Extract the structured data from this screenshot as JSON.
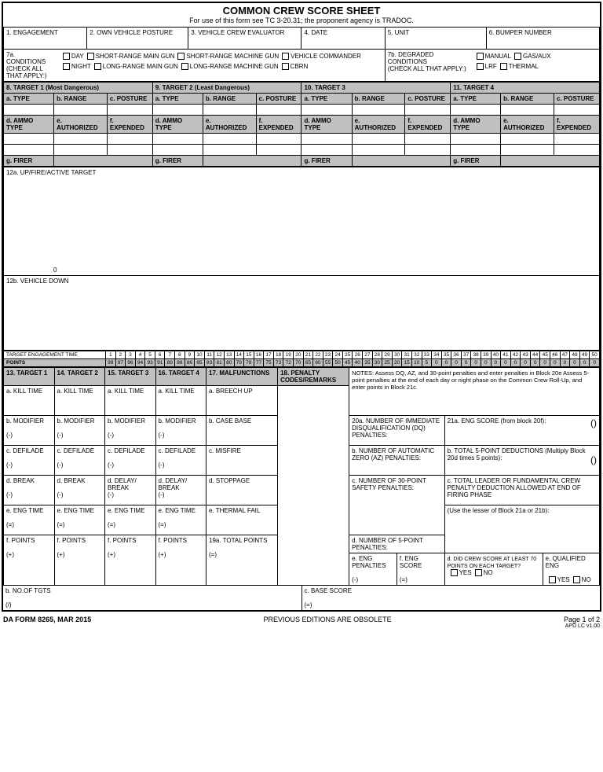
{
  "title": "COMMON CREW SCORE SHEET",
  "subtitle": "For use of this form see TC 3-20.31; the proponent agency is TRADOC.",
  "h1": "1. ENGAGEMENT",
  "h2": "2. OWN VEHICLE POSTURE",
  "h3": "3. VEHICLE CREW EVALUATOR",
  "h4": "4. DATE",
  "h5": "5. UNIT",
  "h6": "6. BUMPER NUMBER",
  "h7a": "7a. CONDITIONS",
  "h7a2": "(CHECK ALL THAT APPLY:)",
  "c_day": "DAY",
  "c_night": "NIGHT",
  "c_srmg": "SHORT-RANGE MAIN GUN",
  "c_lrmg": "LONG-RANGE MAIN GUN",
  "c_srm": "SHORT-RANGE MACHINE GUN",
  "c_lrm": "LONG-RANGE MACHINE GUN",
  "c_vc": "VEHICLE COMMANDER",
  "c_cbrn": "CBRN",
  "h7b": "7b. DEGRADED CONDITIONS",
  "h7b2": "(CHECK ALL THAT APPLY:)",
  "c_man": "MANUAL",
  "c_gas": "GAS/AUX",
  "c_lrf": "LRF",
  "c_thm": "THERMAL",
  "t8": "8.        TARGET 1 (Most Dangerous)",
  "t9": "9.            TARGET 2 (Least Dangerous)",
  "t10": "10.            TARGET 3",
  "t11": "11.            TARGET 4",
  "aType": "a. TYPE",
  "bRange": "b. RANGE",
  "cPost": "c. POSTURE",
  "dAmmo": "d. AMMO TYPE",
  "eAuth": "e. AUTHORIZED",
  "fExp": "f. EXPENDED",
  "gFir": "g. FIRER",
  "r12a": "12a. UP/FIRE/ACTIVE TARGET",
  "zero": "0",
  "r12b": "12b. VEHICLE DOWN",
  "tet": "TARGET ENGAGEMENT TIME",
  "pts": "POINTS",
  "timeRow": [
    "1",
    "2",
    "3",
    "4",
    "5",
    "6",
    "7",
    "8",
    "9",
    "10",
    "11",
    "12",
    "13",
    "14",
    "15",
    "16",
    "17",
    "18",
    "19",
    "20",
    "21",
    "22",
    "23",
    "24",
    "25",
    "26",
    "27",
    "28",
    "29",
    "30",
    "31",
    "32",
    "33",
    "34",
    "35",
    "36",
    "37",
    "38",
    "39",
    "40",
    "41",
    "42",
    "43",
    "44",
    "45",
    "46",
    "47",
    "48",
    "49",
    "50"
  ],
  "ptsRow": [
    "99",
    "97",
    "96",
    "94",
    "93",
    "91",
    "89",
    "88",
    "86",
    "85",
    "83",
    "81",
    "80",
    "79",
    "78",
    "77",
    "75",
    "73",
    "72",
    "70",
    "65",
    "60",
    "55",
    "50",
    "45",
    "40",
    "35",
    "30",
    "25",
    "20",
    "15",
    "10",
    "5",
    "0",
    "0",
    "0",
    "0",
    "0",
    "0",
    "0",
    "0",
    "0",
    "0",
    "0",
    "0",
    "0",
    "0",
    "0",
    "0",
    "0"
  ],
  "t13": "13. TARGET 1",
  "t14": "14. TARGET 2",
  "t15": "15. TARGET 3",
  "t16": "16. TARGET 4",
  "t17": "17. MALFUNCTIONS",
  "t18": "18. PENALTY CODES/REMARKS",
  "akt": "a. KILL TIME",
  "bmod": "b. MODIFIER",
  "cdef": "c. DEFILADE",
  "dbrk": "d. BREAK",
  "ddel": "d. DELAY/ BREAK",
  "eeng": "e. ENG TIME",
  "fpts": "f. POINTS",
  "m_a": "a. BREECH UP",
  "m_b": "b. CASE BASE",
  "m_c": "c. MISFIRE",
  "m_d": "d. STOPPAGE",
  "m_e": "e. THERMAL FAIL",
  "r19a": "19a. TOTAL POINTS",
  "bno": "b. NO.OF TGTS",
  "cbase": "c. BASE SCORE",
  "notes": "NOTES: Assess DQ, AZ, and 30-point penalties and enter penalties in Block 20e Assess 5-point penalties at the end of each day or night phase on the Common Crew Roll-Up, and enter points in Block 21c.",
  "r20a": "20a. NUMBER OF IMMEDIATE DISQUALIFICATION (DQ) PENALTIES:",
  "r21a": "21a. ENG SCORE (from block 20f):",
  "r20b": "b. NUMBER OF AUTOMATIC ZERO (AZ) PENALTIES:",
  "r21b": "b. TOTAL 5-POINT  DEDUCTIONS (Multiply Block 20d times 5 points):",
  "r20c": "c. NUMBER OF 30-POINT SAFETY PENALTIES:",
  "r21c": "c. TOTAL LEADER OR FUNDAMENTAL CREW PENALTY DEDUCTION ALLOWED AT END OF FIRING PHASE",
  "r20d": "d. NUMBER OF 5-POINT PENALTIES:",
  "r21d": "(Use the lesser of Block 21a or 21b):",
  "eep": "e. ENG PENALTIES",
  "fes": "f. ENG SCORE",
  "ddc": "d. DID CREW SCORE AT LEAST 70 POINTS ON EACH TARGET?",
  "eqe": "e. QUALIFIED ENG",
  "yes": "YES",
  "no": "NO",
  "minus": "(-)",
  "plus": "(+)",
  "eq": "(=)",
  "slash": "(/)",
  "par": "()",
  "form": "DA FORM 8265, MAR 2015",
  "obs": "PREVIOUS EDITIONS ARE OBSOLETE",
  "pg": "Page 1 of 2",
  "apd": "APD LC v1.00"
}
